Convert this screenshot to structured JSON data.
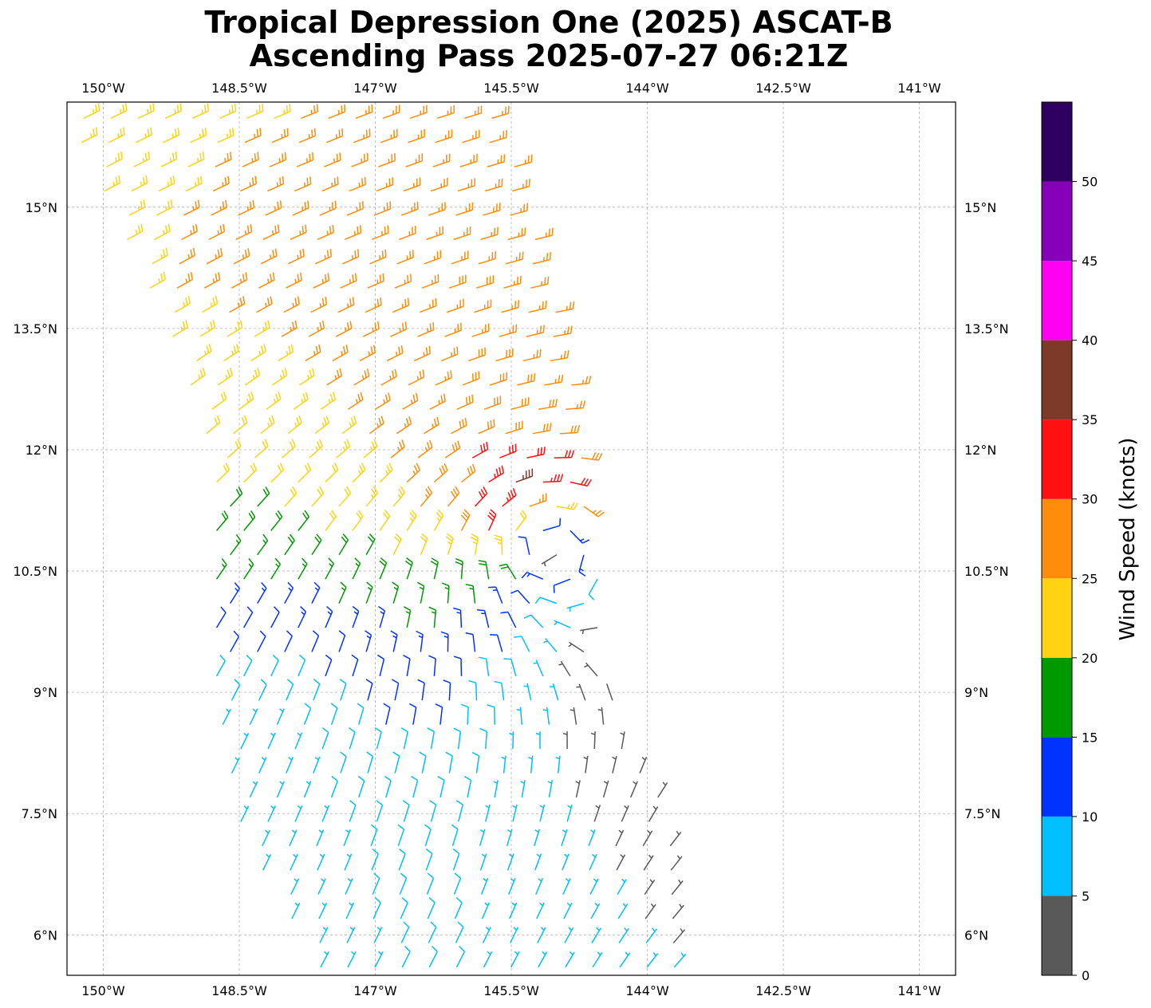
{
  "title": "Tropical Depression One (2025) ASCAT-B",
  "subtitle": "Ascending Pass 2025-07-27 06:21Z",
  "map": {
    "lon_range": [
      -150.4,
      -140.6
    ],
    "lat_range": [
      5.5,
      16.3
    ],
    "lon_ticks": [
      -150,
      -148.5,
      -147,
      -145.5,
      -144,
      -142.5,
      -141
    ],
    "lon_tick_labels": [
      "150°W",
      "148.5°W",
      "147°W",
      "145.5°W",
      "144°W",
      "142.5°W",
      "141°W"
    ],
    "lat_ticks": [
      6,
      7.5,
      9,
      10.5,
      12,
      13.5,
      15
    ],
    "lat_tick_labels": [
      "6°N",
      "7.5°N",
      "9°N",
      "10.5°N",
      "12°N",
      "13.5°N",
      "15°N"
    ],
    "gridlines": true,
    "gridline_style": "dashed",
    "storm_center": {
      "lon": -145.2,
      "lat": 11.0
    },
    "swath_edges": {
      "west": [
        [
          -150.5,
          16.3
        ],
        [
          -149.2,
          13.2
        ],
        [
          -148.8,
          11.8
        ],
        [
          -148.8,
          9.0
        ],
        [
          -148.5,
          7.2
        ],
        [
          -147.6,
          5.5
        ]
      ],
      "east": [
        [
          -145.6,
          16.3
        ],
        [
          -144.9,
          13.5
        ],
        [
          -144.6,
          11.5
        ],
        [
          -144.4,
          9.0
        ],
        [
          -143.7,
          7.3
        ],
        [
          -143.6,
          5.5
        ]
      ]
    },
    "barb_field": "wind barbs along the ASCAT swath, coloured by wind speed"
  },
  "colorbar": {
    "label": "Wind Speed (knots)",
    "ticks": [
      0,
      5,
      10,
      15,
      20,
      25,
      30,
      35,
      40,
      45,
      50
    ],
    "bins": [
      {
        "from": 0,
        "to": 5,
        "color": "#595959"
      },
      {
        "from": 5,
        "to": 10,
        "color": "#00bfff"
      },
      {
        "from": 10,
        "to": 15,
        "color": "#0033ff"
      },
      {
        "from": 15,
        "to": 20,
        "color": "#009900"
      },
      {
        "from": 20,
        "to": 25,
        "color": "#ffd212"
      },
      {
        "from": 25,
        "to": 30,
        "color": "#ff8c0a"
      },
      {
        "from": 30,
        "to": 35,
        "color": "#ff1010"
      },
      {
        "from": 35,
        "to": 40,
        "color": "#7d3a28"
      },
      {
        "from": 40,
        "to": 45,
        "color": "#ff00f2"
      },
      {
        "from": 45,
        "to": 50,
        "color": "#8600b8"
      },
      {
        "from": 50,
        "to": 55,
        "color": "#2f0060"
      }
    ]
  }
}
